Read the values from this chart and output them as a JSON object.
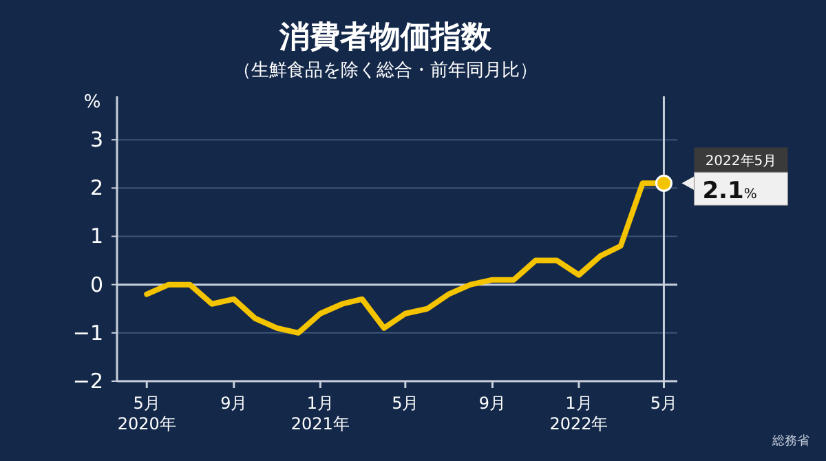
{
  "chart_data": {
    "type": "line",
    "title": "消費者物価指数",
    "subtitle": "（生鮮食品を除く総合・前年同月比）",
    "ylabel": "%",
    "x": [
      "2020-05",
      "2020-06",
      "2020-07",
      "2020-08",
      "2020-09",
      "2020-10",
      "2020-11",
      "2020-12",
      "2021-01",
      "2021-02",
      "2021-03",
      "2021-04",
      "2021-05",
      "2021-06",
      "2021-07",
      "2021-08",
      "2021-09",
      "2021-10",
      "2021-11",
      "2021-12",
      "2022-01",
      "2022-02",
      "2022-03",
      "2022-04",
      "2022-05"
    ],
    "series": [
      {
        "color": "#f5c400",
        "values": [
          -0.2,
          0.0,
          0.0,
          -0.4,
          -0.3,
          -0.7,
          -0.9,
          -1.0,
          -0.6,
          -0.4,
          -0.3,
          -0.9,
          -0.6,
          -0.5,
          -0.2,
          0.0,
          0.1,
          0.1,
          0.5,
          0.5,
          0.2,
          0.6,
          0.8,
          2.1,
          2.1
        ]
      }
    ],
    "xlim": [
      "2020-03-20",
      "2022-05-20"
    ],
    "xticks": [
      {
        "value": "2020-05",
        "label": "5月\n2020年"
      },
      {
        "value": "2020-09",
        "label": "9月"
      },
      {
        "value": "2021-01",
        "label": "1月\n2021年"
      },
      {
        "value": "2021-05",
        "label": "5月"
      },
      {
        "value": "2021-09",
        "label": "9月"
      },
      {
        "value": "2022-01",
        "label": "1月\n2022年"
      },
      {
        "value": "2022-05",
        "label": "5月"
      }
    ],
    "ylim": [
      -2,
      3.9
    ],
    "yticks": [
      -2,
      -1,
      0,
      1,
      2,
      3
    ],
    "grid": "y",
    "marker": "none",
    "line_style": "solid",
    "ref_lines": [
      {
        "axis": "x",
        "value": "2022-05",
        "color": "#c8d0dc"
      }
    ],
    "annotations": [
      {
        "text": "2022年5月\n2.1%",
        "x": "2022-05",
        "y": 2.1
      },
      "総務省"
    ]
  }
}
